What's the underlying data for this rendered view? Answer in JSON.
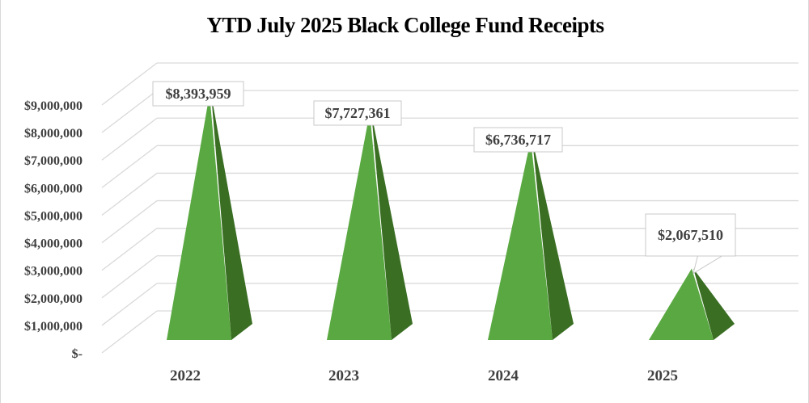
{
  "chart_data": {
    "type": "bar",
    "subtype": "3d-pyramid",
    "title": "YTD July 2025 Black College Fund Receipts",
    "xlabel": "",
    "ylabel": "",
    "categories": [
      "2022",
      "2023",
      "2024",
      "2025"
    ],
    "values": [
      8393959,
      7727361,
      6736717,
      2067510
    ],
    "data_labels": [
      "$8,393,959",
      "$7,727,361",
      "$6,736,717",
      "$2,067,510"
    ],
    "ylim": [
      0,
      9000000
    ],
    "y_ticks": [
      0,
      1000000,
      2000000,
      3000000,
      4000000,
      5000000,
      6000000,
      7000000,
      8000000,
      9000000
    ],
    "y_tick_labels": [
      "$-",
      "$1,000,000",
      "$2,000,000",
      "$3,000,000",
      "$4,000,000",
      "$5,000,000",
      "$6,000,000",
      "$7,000,000",
      "$8,000,000",
      "$9,000,000"
    ],
    "grid": true,
    "legend": "none",
    "colors": {
      "front_face": "#5aa842",
      "side_face": "#3a6e23",
      "gridline": "#d9d9d9",
      "label_text": "#404040"
    }
  }
}
